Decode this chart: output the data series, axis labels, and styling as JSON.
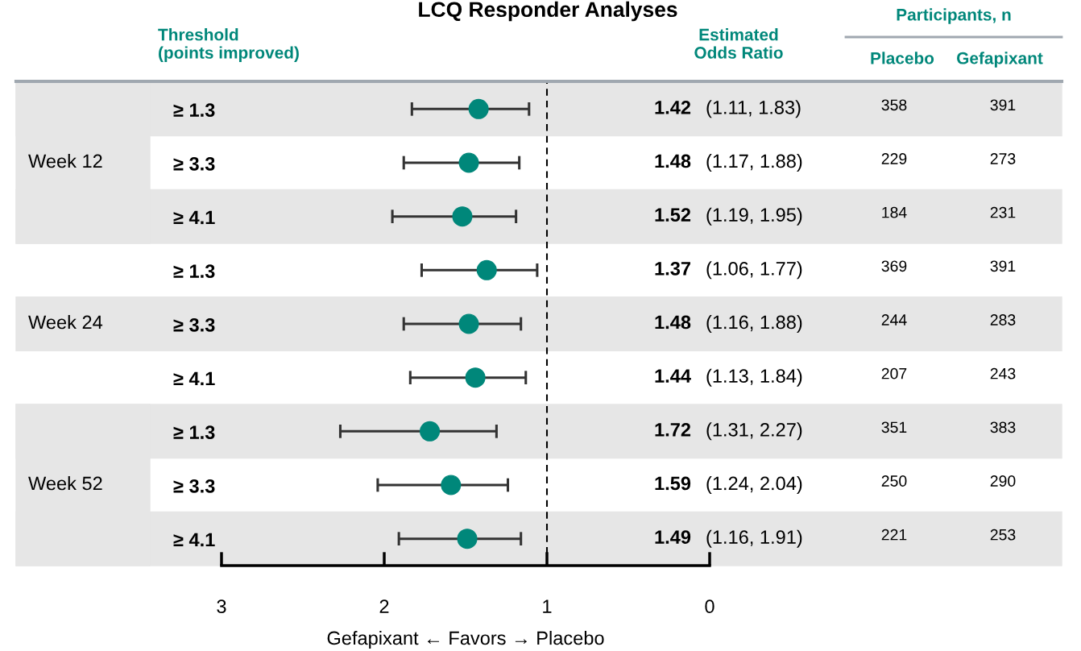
{
  "chart_data": {
    "type": "scatter",
    "orientation": "horizontal",
    "title": "LCQ Responder Analyses",
    "xlabel": "Gefapixant ← Favors → Placebo",
    "categories": [
      "≥ 1.3",
      "≥ 3.3",
      "≥ 4.1",
      "≥ 1.3",
      "≥ 3.3",
      "≥ 4.1",
      "≥ 1.3",
      "≥ 3.3",
      "≥ 4.1"
    ],
    "values": [
      1.42,
      1.48,
      1.52,
      1.37,
      1.48,
      1.44,
      1.72,
      1.59,
      1.49
    ],
    "errors": [
      [
        1.11,
        1.83
      ],
      [
        1.17,
        1.88
      ],
      [
        1.19,
        1.95
      ],
      [
        1.06,
        1.77
      ],
      [
        1.16,
        1.88
      ],
      [
        1.13,
        1.84
      ],
      [
        1.31,
        2.27
      ],
      [
        1.24,
        2.04
      ],
      [
        1.16,
        1.91
      ]
    ],
    "value_labels": [
      "1.42 (1.11, 1.83)",
      "1.48 (1.17, 1.88)",
      "1.52 (1.19, 1.95)",
      "1.37 (1.06, 1.77)",
      "1.48 (1.16, 1.88)",
      "1.44 (1.13, 1.84)",
      "1.72 (1.31, 2.27)",
      "1.59 (1.24, 2.04)",
      "1.49 (1.16, 1.91)"
    ],
    "color": "#00877a",
    "marker": "circle",
    "xlim": [
      3,
      0
    ],
    "xticks": [
      3,
      2,
      1,
      0
    ],
    "grid": false,
    "legend": false,
    "ref_lines": [
      {
        "axis": "x",
        "value": 1,
        "line_style": "dashed",
        "color": "#000000"
      }
    ],
    "annotations": [
      "Threshold\n(points improved)",
      "Estimated\nOdds Ratio",
      "Participants, n",
      "Placebo",
      "Gefapixant",
      "Week 12",
      "Week 24",
      "Week 52",
      "358",
      "391",
      "229",
      "273",
      "184",
      "231",
      "369",
      "391",
      "244",
      "283",
      "207",
      "243",
      "351",
      "383",
      "250",
      "290",
      "221",
      "253"
    ]
  }
}
